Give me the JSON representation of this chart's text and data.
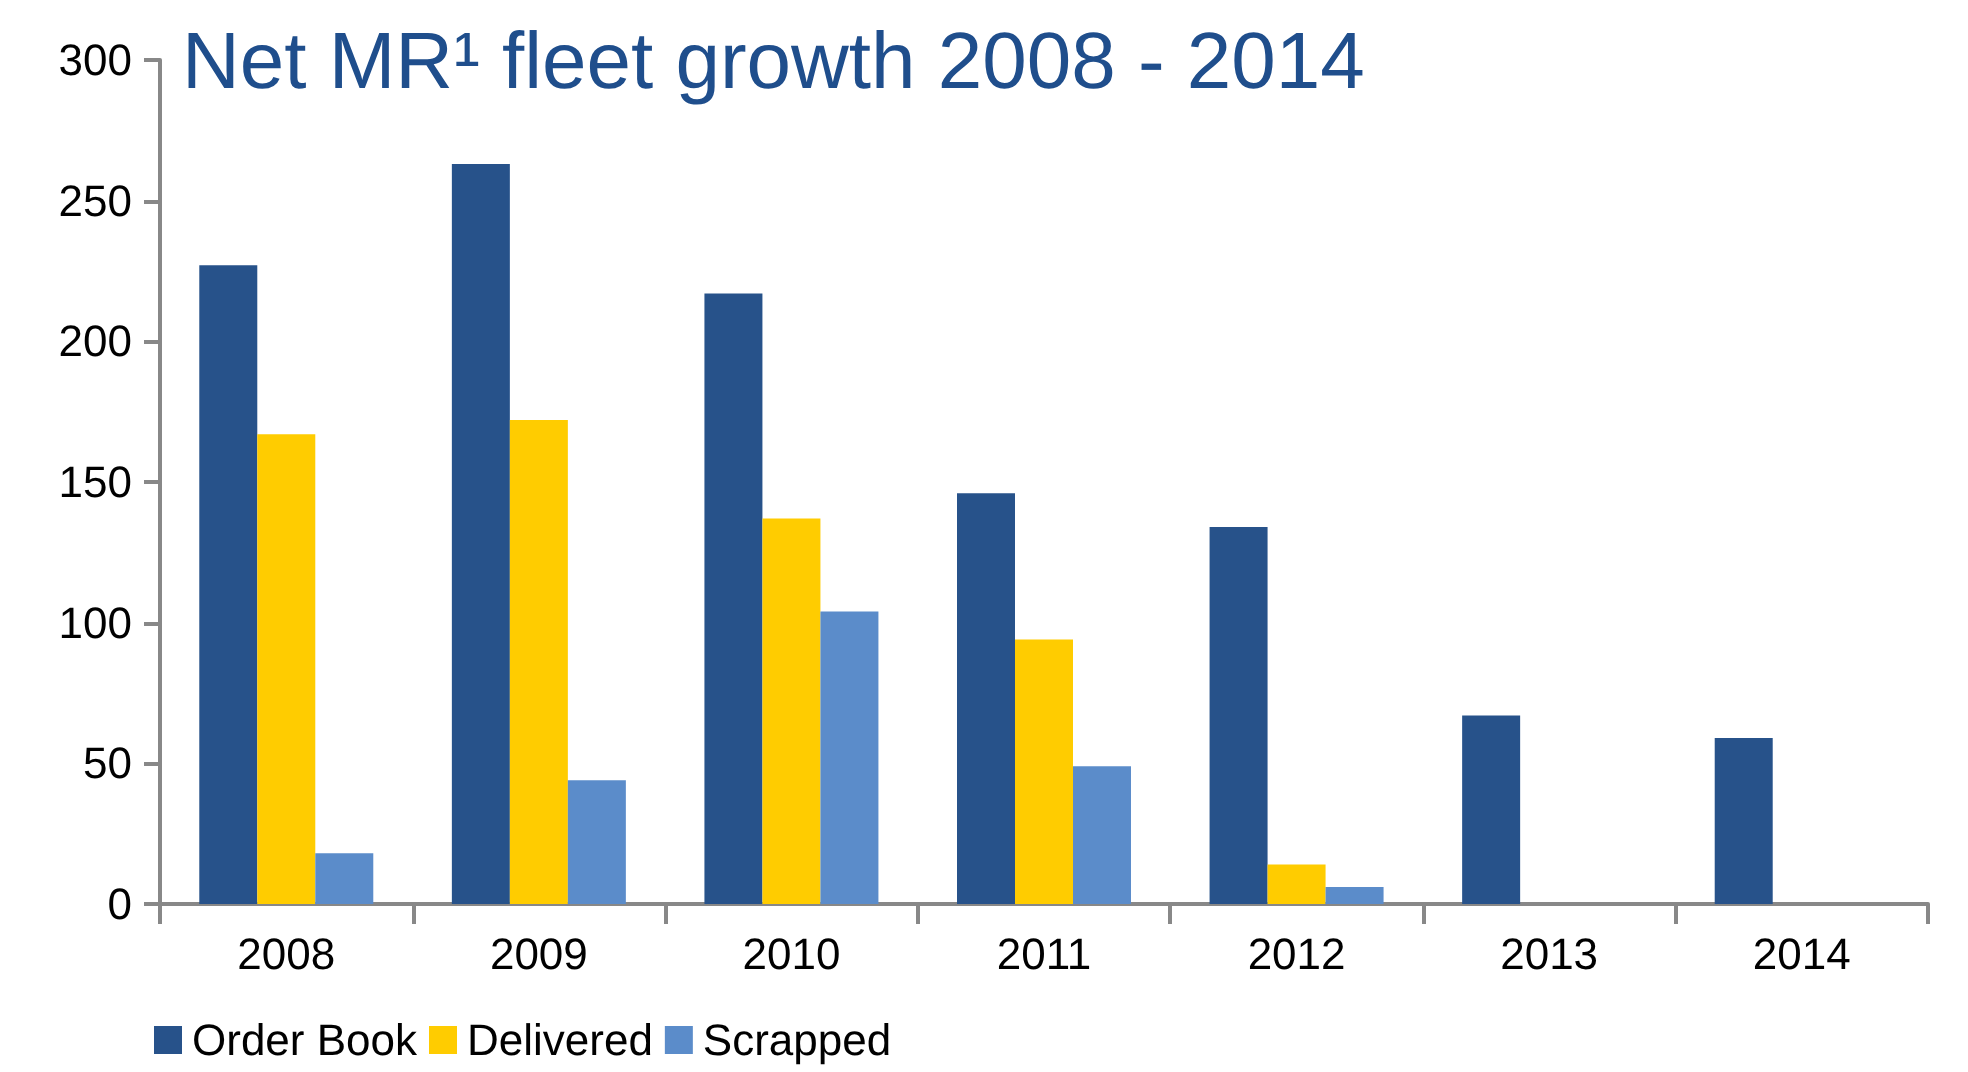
{
  "chart_data": {
    "type": "bar",
    "title": "Net MR¹ fleet growth 2008 - 2014",
    "categories": [
      "2008",
      "2009",
      "2010",
      "2011",
      "2012",
      "2013",
      "2014"
    ],
    "series": [
      {
        "name": "Order Book",
        "color": "#27528a",
        "values": [
          227,
          263,
          217,
          146,
          134,
          67,
          59
        ]
      },
      {
        "name": "Delivered",
        "color": "#ffcc00",
        "values": [
          167,
          172,
          137,
          94,
          14,
          null,
          null
        ]
      },
      {
        "name": "Scrapped",
        "color": "#5b8cca",
        "values": [
          18,
          44,
          104,
          49,
          6,
          null,
          null
        ]
      }
    ],
    "ylim": [
      0,
      300
    ],
    "yticks": [
      0,
      50,
      100,
      150,
      200,
      250,
      300
    ],
    "grid": false,
    "legend": "bottom left"
  }
}
